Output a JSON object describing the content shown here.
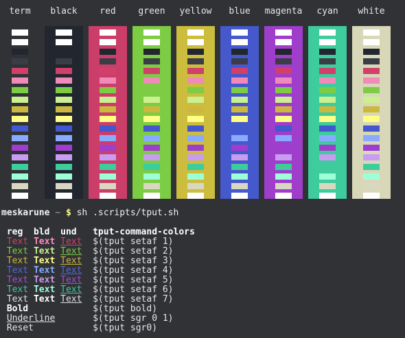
{
  "header": {
    "columns": [
      "term",
      "black",
      "red",
      "green",
      "yellow",
      "blue",
      "magenta",
      "cyan",
      "white"
    ]
  },
  "prompt": {
    "user": "meskarune",
    "path": "~",
    "symbol": "$",
    "command": "sh .scripts/tput.sh"
  },
  "table": {
    "headers": [
      "reg",
      "bld",
      "und",
      "tput-command-colors"
    ],
    "rows": [
      {
        "reg": "Text",
        "bld": "Text",
        "und": "Text",
        "command": "$(tput setaf 1)",
        "color": "#d0406a",
        "bold_color": "#ff8ac0"
      },
      {
        "reg": "Text",
        "bld": "Text",
        "und": "Text",
        "command": "$(tput setaf 2)",
        "color": "#7ccc44",
        "bold_color": "#ccf090"
      },
      {
        "reg": "Text",
        "bld": "Text",
        "und": "Text",
        "command": "$(tput setaf 3)",
        "color": "#ccb83e",
        "bold_color": "#ffff88"
      },
      {
        "reg": "Text",
        "bld": "Text",
        "und": "Text",
        "command": "$(tput setaf 4)",
        "color": "#5468dc",
        "bold_color": "#88aaff"
      },
      {
        "reg": "Text",
        "bld": "Text",
        "und": "Text",
        "command": "$(tput setaf 5)",
        "color": "#a04ed8",
        "bold_color": "#c89cf0"
      },
      {
        "reg": "Text",
        "bld": "Text",
        "und": "Text",
        "command": "$(tput setaf 6)",
        "color": "#3ecc9c",
        "bold_color": "#9cffd8"
      },
      {
        "reg": "Text",
        "bld": "Text",
        "und": "Text",
        "command": "$(tput setaf 7)",
        "color": "#e0e0e0",
        "bold_color": "#ffffff"
      },
      {
        "label": "Bold",
        "style": "bold",
        "command": "$(tput bold)"
      },
      {
        "label": "Underline",
        "style": "underline",
        "command": "$(tput sgr 0 1)"
      },
      {
        "label": "Reset",
        "style": "normal",
        "command": "$(tput sgr0)"
      }
    ]
  }
}
